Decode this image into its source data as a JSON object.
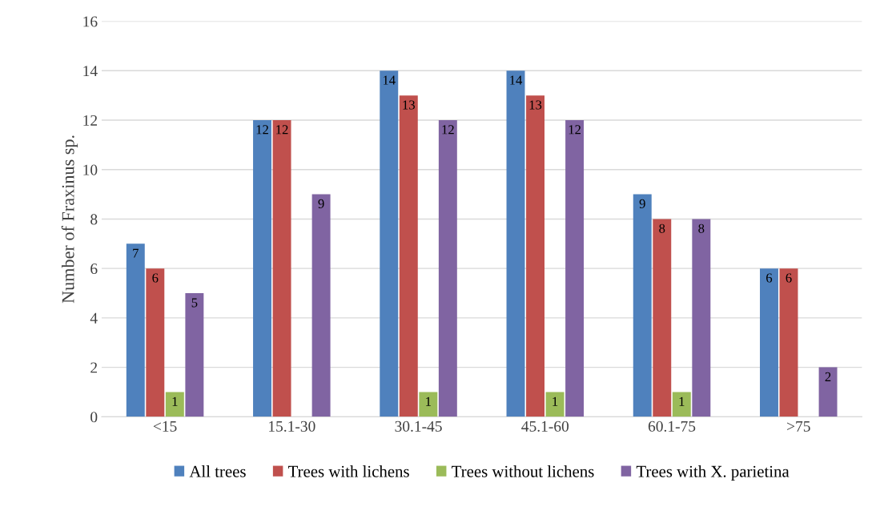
{
  "chart_data": {
    "type": "bar",
    "ylabel": "Number of Fraxinus sp.",
    "categories": [
      "<15",
      "15.1-30",
      "30.1-45",
      "45.1-60",
      "60.1-75",
      ">75"
    ],
    "series": [
      {
        "name": "All trees",
        "color": "#4f81bd",
        "values": [
          7,
          12,
          14,
          14,
          9,
          6
        ],
        "value_labels": [
          "7",
          "12",
          "14",
          "14",
          "9",
          "6"
        ]
      },
      {
        "name": "Trees with lichens",
        "color": "#c0504d",
        "values": [
          6,
          12,
          13,
          13,
          8,
          6
        ],
        "value_labels": [
          "6",
          "12",
          "13",
          "13",
          "8",
          "6"
        ]
      },
      {
        "name": "Trees without lichens",
        "color": "#9bbb59",
        "values": [
          1,
          0,
          1,
          1,
          1,
          0
        ],
        "value_labels": [
          "1",
          null,
          "1",
          "1",
          "1",
          null
        ]
      },
      {
        "name": "Trees with X. parietina",
        "color": "#8064a2",
        "values": [
          5,
          9,
          12,
          12,
          8,
          2
        ],
        "value_labels": [
          "5",
          "9",
          "12",
          "12",
          "8",
          "2"
        ]
      }
    ],
    "ylim": [
      0,
      16
    ],
    "yticks": [
      0,
      2,
      4,
      6,
      8,
      10,
      12,
      14,
      16
    ],
    "grid": "y",
    "legend": "bottom"
  }
}
